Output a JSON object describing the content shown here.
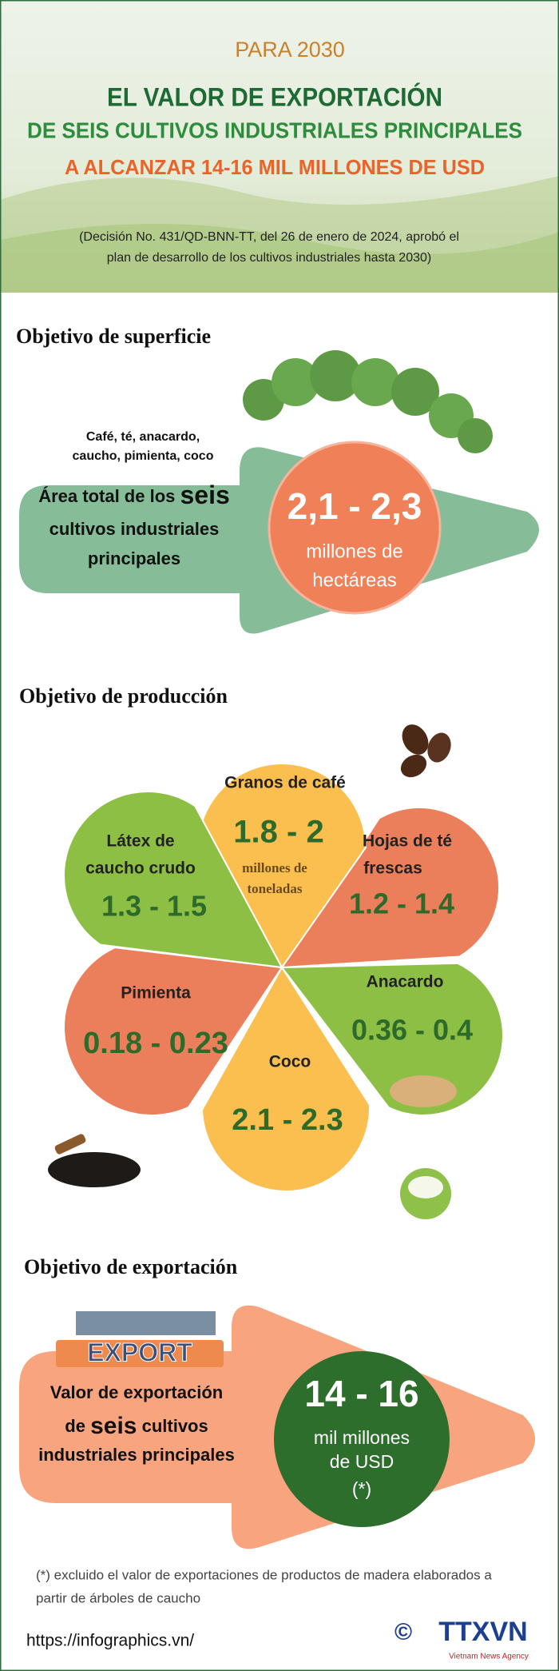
{
  "header": {
    "kicker": "PARA 2030",
    "title_lines": [
      "EL VALOR DE EXPORTACIÓN",
      "DE SEIS CULTIVOS INDUSTRIALES PRINCIPALES",
      "A ALCANZAR 14-16 MIL MILLONES DE USD"
    ],
    "note_lines": [
      "(Decisión No. 431/QD-BNN-TT, del 26 de enero de 2024, aprobó el",
      "plan de desarrollo de los cultivos industriales hasta 2030)"
    ]
  },
  "surface": {
    "title": "Objetivo de superficie",
    "crops_lines": [
      "Café, té, anacardo,",
      "caucho, pimienta, coco"
    ],
    "label": {
      "before": "Área total de los",
      "emphasis": "seis",
      "after_lines": [
        "cultivos industriales",
        "principales"
      ]
    },
    "value": "2,1 - 2,3",
    "unit_lines": [
      "millones de",
      "hectáreas"
    ]
  },
  "production": {
    "title": "Objetivo de producción",
    "unit_lines": [
      "millones de",
      "toneladas"
    ],
    "crops": [
      {
        "name_lines": [
          "Granos de café"
        ],
        "value": "1.8 - 2"
      },
      {
        "name_lines": [
          "Látex de",
          "caucho crudo"
        ],
        "value": "1.3 - 1.5"
      },
      {
        "name_lines": [
          "Hojas de té",
          "frescas"
        ],
        "value": "1.2 - 1.4"
      },
      {
        "name_lines": [
          "Anacardo"
        ],
        "value": "0.36 - 0.4"
      },
      {
        "name_lines": [
          "Pimienta"
        ],
        "value": "0.18 - 0.23"
      },
      {
        "name_lines": [
          "Coco"
        ],
        "value": "2.1 - 2.3"
      }
    ]
  },
  "export": {
    "title": "Objetivo de exportación",
    "badge": "EXPORT",
    "label": {
      "line1": "Valor de exportación",
      "before": "de",
      "emphasis": "seis",
      "after": "cultivos",
      "line3": "industriales principales"
    },
    "value": "14 - 16",
    "unit_lines": [
      "mil millones",
      "de USD",
      "(*)"
    ]
  },
  "footnote_lines": [
    "(*) excluido el valor de exportaciones de productos de madera elaborados a",
    "partir de árboles de caucho"
  ],
  "url": "https://infographics.vn/",
  "logo": {
    "symbol": "©",
    "name": "TTXVN",
    "tagline": "Vietnam News Agency"
  }
}
